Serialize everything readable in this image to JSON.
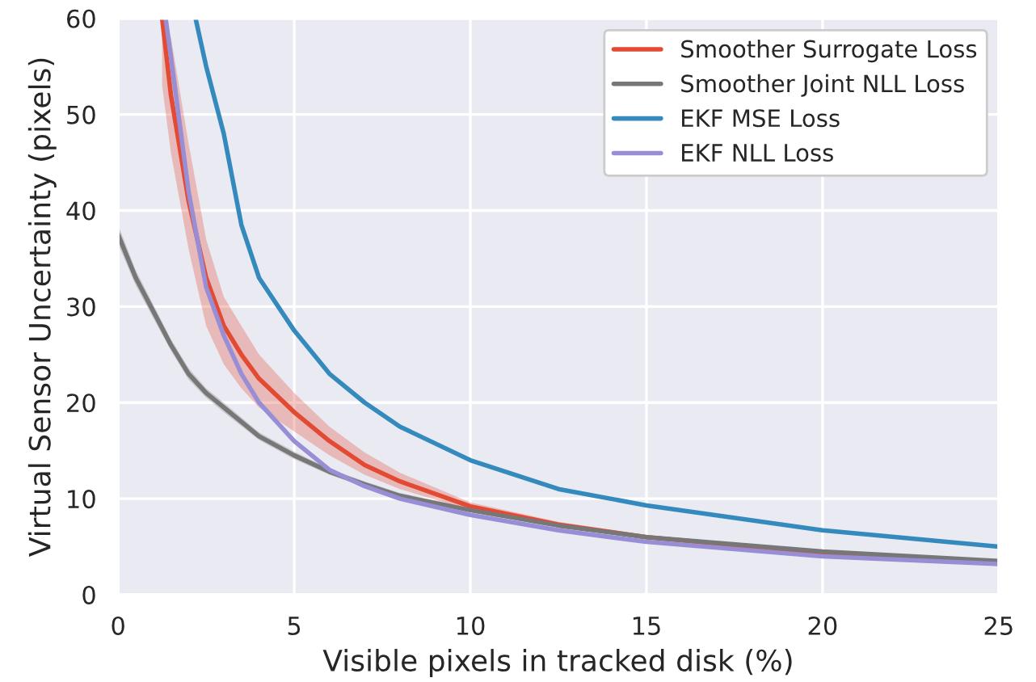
{
  "chart_data": {
    "type": "line",
    "xlabel": "Visible pixels in tracked disk (%)",
    "ylabel": "Virtual Sensor Uncertainty (pixels)",
    "xlim": [
      0,
      25
    ],
    "ylim": [
      0,
      60
    ],
    "xticks": [
      0,
      5,
      10,
      15,
      20,
      25
    ],
    "yticks": [
      0,
      10,
      20,
      30,
      40,
      50,
      60
    ],
    "grid": true,
    "legend": "top right",
    "line_style": "solid",
    "marker": "none",
    "series": [
      {
        "name": "Smoother Surrogate Loss",
        "color": "#e24a33",
        "x": [
          1.25,
          1.5,
          2,
          2.5,
          3,
          3.5,
          4,
          5,
          6,
          7,
          8,
          10,
          12.5,
          15,
          20,
          25
        ],
        "values": [
          60,
          52,
          41,
          33,
          28,
          25,
          22.5,
          19,
          16,
          13.5,
          11.8,
          9.2,
          7.3,
          6,
          4.3,
          3.3
        ],
        "lower": [
          53,
          46,
          36,
          28,
          24,
          21.5,
          19.5,
          17,
          14.5,
          12.5,
          11,
          8.8,
          7,
          5.8,
          4.2,
          3.2
        ],
        "upper": [
          60,
          58,
          47,
          37,
          31,
          28,
          25,
          21,
          17.5,
          14.8,
          12.7,
          9.6,
          7.6,
          6.2,
          4.4,
          3.4
        ]
      },
      {
        "name": "Smoother Joint NLL Loss",
        "color": "#777777",
        "x": [
          0,
          0.5,
          1,
          1.5,
          2,
          2.5,
          3,
          4,
          5,
          6,
          7,
          8,
          10,
          12.5,
          15,
          20,
          25
        ],
        "values": [
          37.5,
          33,
          29.5,
          26,
          23,
          21,
          19.5,
          16.5,
          14.5,
          12.8,
          11.5,
          10.3,
          8.8,
          7.2,
          6,
          4.5,
          3.5
        ],
        "lower": [
          36.5,
          32.2,
          28.8,
          25.4,
          22.4,
          20.5,
          19,
          16.1,
          14.1,
          12.5,
          11.2,
          10,
          8.6,
          7,
          5.8,
          4.4,
          3.4
        ],
        "upper": [
          38.5,
          33.8,
          30.2,
          26.6,
          23.6,
          21.5,
          20,
          16.9,
          14.9,
          13.1,
          11.8,
          10.6,
          9,
          7.4,
          6.2,
          4.6,
          3.6
        ]
      },
      {
        "name": "EKF MSE Loss",
        "color": "#348abd",
        "x": [
          2.2,
          2.5,
          3,
          3.5,
          4,
          5,
          6,
          7,
          8,
          10,
          12.5,
          15,
          20,
          25
        ],
        "values": [
          60,
          55,
          48,
          38.5,
          33,
          27.5,
          23,
          20,
          17.5,
          14,
          11,
          9.3,
          6.7,
          5
        ]
      },
      {
        "name": "EKF NLL Loss",
        "color": "#988ed5",
        "x": [
          1.35,
          1.5,
          2,
          2.5,
          3,
          3.5,
          4,
          5,
          6,
          7,
          8,
          10,
          12.5,
          15,
          20,
          25
        ],
        "values": [
          60,
          56,
          42,
          32,
          27,
          23,
          20,
          16,
          13,
          11.3,
          10,
          8.3,
          6.7,
          5.5,
          4,
          3.2
        ]
      }
    ]
  }
}
